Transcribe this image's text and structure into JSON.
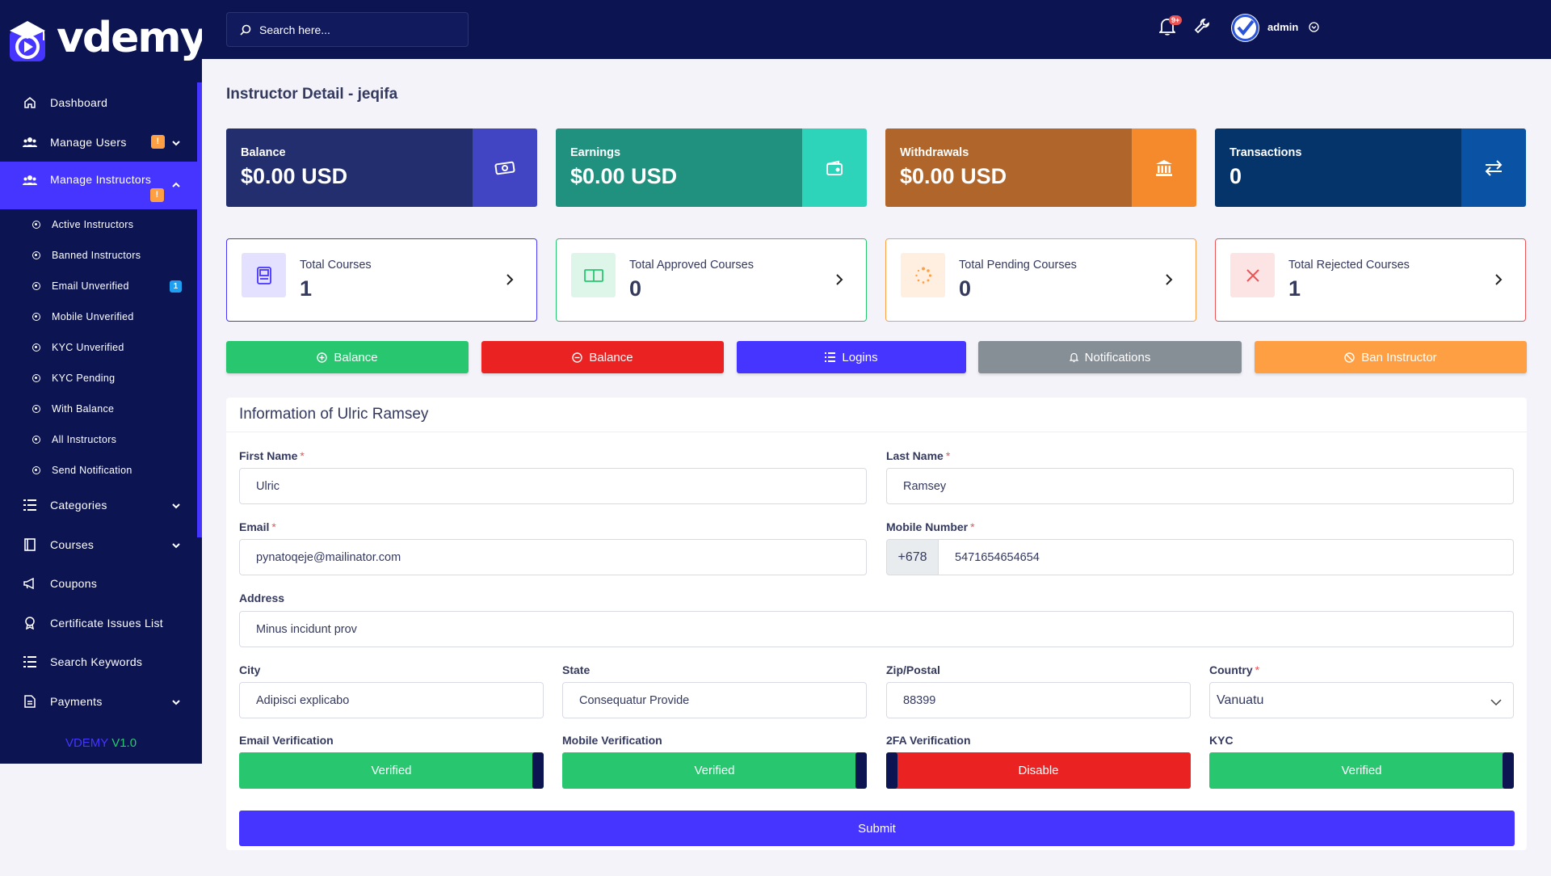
{
  "brand": {
    "logo_text": "vdemy",
    "version_prefix": "VDEMY",
    "version_number": "V1.0"
  },
  "sidebar": {
    "items": [
      {
        "label": "Dashboard",
        "icon": "home-icon"
      },
      {
        "label": "Manage Users",
        "icon": "users-icon",
        "badge": "!"
      },
      {
        "label": "Manage Instructors",
        "icon": "users-icon",
        "badge": "!"
      },
      {
        "label": "Categories",
        "icon": "list-icon"
      },
      {
        "label": "Courses",
        "icon": "book-icon"
      },
      {
        "label": "Coupons",
        "icon": "megaphone-icon"
      },
      {
        "label": "Certificate Issues List",
        "icon": "award-icon"
      },
      {
        "label": "Search Keywords",
        "icon": "list-icon"
      },
      {
        "label": "Payments",
        "icon": "file-icon"
      }
    ],
    "sub_items": [
      {
        "label": "Active Instructors"
      },
      {
        "label": "Banned Instructors"
      },
      {
        "label": "Email Unverified",
        "badge": "1"
      },
      {
        "label": "Mobile Unverified"
      },
      {
        "label": "KYC Unverified"
      },
      {
        "label": "KYC Pending"
      },
      {
        "label": "With Balance"
      },
      {
        "label": "All Instructors"
      },
      {
        "label": "Send Notification"
      }
    ]
  },
  "topbar": {
    "search_placeholder": "Search here...",
    "notification_count": "9+",
    "admin_name": "admin"
  },
  "page": {
    "title": "Instructor Detail - jeqifa"
  },
  "stats": [
    {
      "label": "Balance",
      "value": "$0.00 USD",
      "color_left": "#232e6e",
      "color_right": "#4145c3",
      "icon": "money-icon"
    },
    {
      "label": "Earnings",
      "value": "$0.00 USD",
      "color_left": "#20917f",
      "color_right": "#2dd4b9",
      "icon": "wallet-icon"
    },
    {
      "label": "Withdrawals",
      "value": "$0.00 USD",
      "color_left": "#b0652a",
      "color_right": "#f48a2c",
      "icon": "bank-icon"
    },
    {
      "label": "Transactions",
      "value": "0",
      "color_left": "#05346b",
      "color_right": "#0a52a3",
      "icon": "exchange-icon"
    }
  ],
  "course_cards": [
    {
      "label": "Total Courses",
      "value": "1",
      "border": "#4634ff",
      "bg": "#e3e1ff",
      "fg": "#4634ff",
      "icon": "book-icon"
    },
    {
      "label": "Total Approved Courses",
      "value": "0",
      "border": "#28c76f",
      "bg": "#ddf6e9",
      "fg": "#28c76f",
      "icon": "open-book-icon"
    },
    {
      "label": "Total Pending Courses",
      "value": "0",
      "border": "#ff9f43",
      "bg": "#ffefe0",
      "fg": "#ff9f43",
      "icon": "spinner-icon"
    },
    {
      "label": "Total Rejected Courses",
      "value": "1",
      "border": "#ea5455",
      "bg": "#fde4e4",
      "fg": "#ea5455",
      "icon": "x-icon"
    }
  ],
  "actions": [
    {
      "label": "Balance",
      "color": "#28c76f",
      "icon": "plus-circle-icon"
    },
    {
      "label": "Balance",
      "color": "#eb2222",
      "icon": "minus-circle-icon"
    },
    {
      "label": "Logins",
      "color": "#4634ff",
      "icon": "list-icon"
    },
    {
      "label": "Notifications",
      "color": "#868e96",
      "icon": "bell-icon"
    },
    {
      "label": "Ban Instructor",
      "color": "#ff9f43",
      "icon": "ban-icon"
    }
  ],
  "form": {
    "heading": "Information of Ulric Ramsey",
    "first_name": {
      "label": "First Name",
      "value": "Ulric"
    },
    "last_name": {
      "label": "Last Name",
      "value": "Ramsey"
    },
    "email": {
      "label": "Email",
      "value": "pynatoqeje@mailinator.com"
    },
    "mobile": {
      "label": "Mobile Number",
      "prefix": "+678",
      "value": "5471654654654"
    },
    "address": {
      "label": "Address",
      "value": "Minus incidunt prov"
    },
    "city": {
      "label": "City",
      "value": "Adipisci explicabo"
    },
    "state": {
      "label": "State",
      "value": "Consequatur Provide"
    },
    "zip": {
      "label": "Zip/Postal",
      "value": "88399"
    },
    "country": {
      "label": "Country",
      "value": "Vanuatu"
    },
    "email_verification": {
      "label": "Email Verification",
      "value": "Verified"
    },
    "mobile_verification": {
      "label": "Mobile Verification",
      "value": "Verified"
    },
    "twofa_verification": {
      "label": "2FA Verification",
      "value": "Disable"
    },
    "kyc": {
      "label": "KYC",
      "value": "Verified"
    },
    "submit_label": "Submit"
  }
}
